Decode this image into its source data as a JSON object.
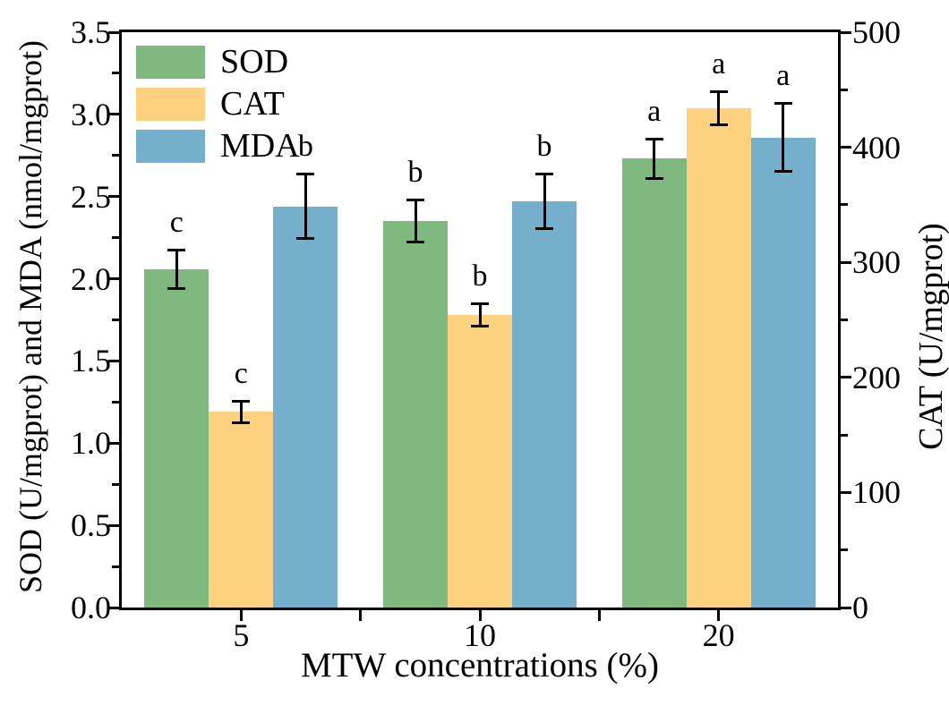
{
  "chart_data": {
    "type": "bar",
    "title": "",
    "xlabel": "MTW concentrations (%)",
    "ylabel_left": "SOD (U/mgprot) and MDA (nmol/mgprot)",
    "ylabel_right": "CAT (U/mgprot)",
    "categories": [
      "5",
      "10",
      "20"
    ],
    "left_axis": {
      "min": 0,
      "max": 3.5,
      "tick_labels": [
        "0.0",
        "0.5",
        "1.0",
        "1.5",
        "2.0",
        "2.5",
        "3.0",
        "3.5"
      ],
      "major_step": 0.5,
      "minor_step": 0.25
    },
    "right_axis": {
      "min": 0,
      "max": 500,
      "tick_labels": [
        "0",
        "100",
        "200",
        "300",
        "400",
        "500"
      ],
      "major_step": 100,
      "minor_step": 50
    },
    "grid": false,
    "legend_position": "top-left",
    "series": [
      {
        "name": "SOD",
        "color": "#7FB980",
        "axis": "left",
        "values": [
          2.06,
          2.35,
          2.73
        ],
        "errors": [
          0.12,
          0.13,
          0.12
        ],
        "sig_letters": [
          "c",
          "b",
          "a"
        ]
      },
      {
        "name": "CAT",
        "color": "#FCD17F",
        "axis": "right",
        "values": [
          170,
          254,
          434
        ],
        "errors": [
          10,
          10,
          15
        ],
        "sig_letters": [
          "c",
          "b",
          "a"
        ]
      },
      {
        "name": "MDA",
        "color": "#75AFCC",
        "axis": "left",
        "values": [
          2.44,
          2.47,
          2.86
        ],
        "errors": [
          0.2,
          0.17,
          0.21
        ],
        "sig_letters": [
          "b",
          "b",
          "a"
        ]
      }
    ]
  }
}
